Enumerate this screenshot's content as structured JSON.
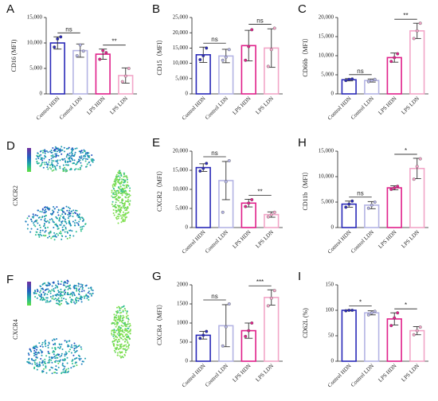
{
  "chart_data": [
    {
      "type": "bar",
      "panel": "A",
      "ylabel": "CD16 (MFI)",
      "categories": [
        "Control HDN",
        "Control LDN",
        "LPS HDN",
        "LPS LDN"
      ],
      "colors": [
        "#2a2ab8",
        "#b4b4e4",
        "#e0208a",
        "#f2a6c8"
      ],
      "values": [
        10000,
        8500,
        7800,
        3600
      ],
      "errors": [
        1200,
        1300,
        1000,
        1500
      ],
      "points": [
        [
          9200,
          10800,
          11200
        ],
        [
          7500,
          9600,
          8400
        ],
        [
          6800,
          8500,
          8100
        ],
        [
          2400,
          3500,
          5000
        ]
      ],
      "ylim": [
        0,
        15000
      ],
      "yticks": [
        0,
        {
          "value": 5000,
          "label": "5,000"
        },
        {
          "value": 10000,
          "label": "10,000"
        },
        {
          "value": 15000,
          "label": "15,000"
        }
      ],
      "significance": [
        {
          "from": 0,
          "to": 1,
          "label": "ns"
        },
        {
          "from": 2,
          "to": 3,
          "label": "**"
        }
      ]
    },
    {
      "type": "bar",
      "panel": "B",
      "ylabel": "CD15（MFI）",
      "categories": [
        "Control HDN",
        "Control LDN",
        "LPS HDN",
        "LPS LDN"
      ],
      "colors": [
        "#2a2ab8",
        "#b4b4e4",
        "#e0208a",
        "#f2a6c8"
      ],
      "values": [
        12800,
        12400,
        15800,
        15000
      ],
      "errors": [
        2500,
        2200,
        5000,
        6300
      ],
      "points": [
        [
          11200,
          12500,
          15000
        ],
        [
          11000,
          12000,
          14500
        ],
        [
          11000,
          15500,
          21000
        ],
        [
          9000,
          14500,
          21500
        ]
      ],
      "ylim": [
        0,
        25000
      ],
      "yticks": [
        0,
        {
          "value": 5000,
          "label": "5,000"
        },
        {
          "value": 10000,
          "label": "10,000"
        },
        {
          "value": 15000,
          "label": "15,000"
        },
        {
          "value": 20000,
          "label": "20,000"
        },
        {
          "value": 25000,
          "label": "25,000"
        }
      ],
      "significance": [
        {
          "from": 0,
          "to": 1,
          "label": "ns"
        },
        {
          "from": 2,
          "to": 3,
          "label": "ns"
        }
      ]
    },
    {
      "type": "bar",
      "panel": "C",
      "ylabel": "CD66b（MFI）",
      "categories": [
        "Control HDN",
        "Control LDN",
        "LPS HDN",
        "LPS LDN"
      ],
      "colors": [
        "#2a2ab8",
        "#b4b4e4",
        "#e0208a",
        "#f2a6c8"
      ],
      "values": [
        3700,
        3500,
        9500,
        16500
      ],
      "errors": [
        300,
        400,
        1200,
        2000
      ],
      "points": [
        [
          3500,
          3800,
          3900
        ],
        [
          3200,
          3500,
          3800
        ],
        [
          8500,
          9500,
          10500
        ],
        [
          14500,
          16500,
          18500
        ]
      ],
      "ylim": [
        0,
        20000
      ],
      "yticks": [
        0,
        {
          "value": 5000,
          "label": "5,000"
        },
        {
          "value": 10000,
          "label": "10,000"
        },
        {
          "value": 15000,
          "label": "15,000"
        },
        {
          "value": 20000,
          "label": "20,000"
        }
      ],
      "significance": [
        {
          "from": 0,
          "to": 1,
          "label": "ns"
        },
        {
          "from": 2,
          "to": 3,
          "label": "**"
        }
      ]
    },
    {
      "type": "bar",
      "panel": "E",
      "ylabel": "CXCR2（MFI）",
      "categories": [
        "Control HDN",
        "Control LDN",
        "LPS HDN",
        "LPS LDN"
      ],
      "colors": [
        "#2a2ab8",
        "#b4b4e4",
        "#e0208a",
        "#f2a6c8"
      ],
      "values": [
        15700,
        12300,
        6400,
        3400
      ],
      "errors": [
        1000,
        5000,
        1000,
        700
      ],
      "points": [
        [
          14800,
          15500,
          16800
        ],
        [
          4000,
          12000,
          17500
        ],
        [
          5500,
          6400,
          7300
        ],
        [
          2800,
          3400,
          4000
        ]
      ],
      "ylim": [
        0,
        20000
      ],
      "yticks": [
        0,
        {
          "value": 5000,
          "label": "5,000"
        },
        {
          "value": 10000,
          "label": "10,000"
        },
        {
          "value": 15000,
          "label": "15,000"
        },
        {
          "value": 20000,
          "label": "20,000"
        }
      ],
      "significance": [
        {
          "from": 0,
          "to": 1,
          "label": "ns"
        },
        {
          "from": 2,
          "to": 3,
          "label": "**"
        }
      ]
    },
    {
      "type": "bar",
      "panel": "H",
      "ylabel": "CD11b（MFI）",
      "categories": [
        "Control HDN",
        "Control LDN",
        "LPS HDN",
        "LPS LDN"
      ],
      "colors": [
        "#2a2ab8",
        "#b4b4e4",
        "#e0208a",
        "#f2a6c8"
      ],
      "values": [
        4600,
        4400,
        7800,
        11600
      ],
      "errors": [
        600,
        700,
        400,
        2000
      ],
      "points": [
        [
          4000,
          4600,
          5200
        ],
        [
          3800,
          4400,
          5000
        ],
        [
          7500,
          7800,
          8100
        ],
        [
          9500,
          12000,
          13500
        ]
      ],
      "ylim": [
        0,
        15000
      ],
      "yticks": [
        0,
        {
          "value": 5000,
          "label": "5,000"
        },
        {
          "value": 10000,
          "label": "10,000"
        },
        {
          "value": 15000,
          "label": "15,000"
        }
      ],
      "significance": [
        {
          "from": 0,
          "to": 1,
          "label": "ns"
        },
        {
          "from": 2,
          "to": 3,
          "label": "*"
        }
      ]
    },
    {
      "type": "bar",
      "panel": "G",
      "ylabel": "CXCR4（MFI）",
      "categories": [
        "Control HDN",
        "Control LDN",
        "LPS HDN",
        "LPS LDN"
      ],
      "colors": [
        "#2a2ab8",
        "#b4b4e4",
        "#e0208a",
        "#f2a6c8"
      ],
      "values": [
        680,
        930,
        800,
        1670
      ],
      "errors": [
        100,
        550,
        200,
        200
      ],
      "points": [
        [
          600,
          680,
          780
        ],
        [
          400,
          900,
          1500
        ],
        [
          650,
          800,
          1000
        ],
        [
          1450,
          1650,
          1850
        ]
      ],
      "ylim": [
        0,
        2000
      ],
      "yticks": [
        0,
        500,
        1000,
        1500,
        2000
      ],
      "significance": [
        {
          "from": 0,
          "to": 1,
          "label": "ns"
        },
        {
          "from": 2,
          "to": 3,
          "label": "***"
        }
      ]
    },
    {
      "type": "bar",
      "panel": "I",
      "ylabel": "CD62L (%)",
      "categories": [
        "Control HDN",
        "Control LDN",
        "LPS HDN",
        "LPS LDN"
      ],
      "colors": [
        "#2a2ab8",
        "#b4b4e4",
        "#e0208a",
        "#f2a6c8"
      ],
      "values": [
        100,
        95,
        83,
        60
      ],
      "errors": [
        1,
        4,
        12,
        8
      ],
      "points": [
        [
          99,
          100,
          100
        ],
        [
          91,
          95,
          98
        ],
        [
          70,
          85,
          95
        ],
        [
          52,
          60,
          67
        ]
      ],
      "ylim": [
        0,
        150
      ],
      "yticks": [
        0,
        50,
        100,
        150
      ],
      "significance": [
        {
          "from": 0,
          "to": 1,
          "label": "*"
        },
        {
          "from": 2,
          "to": 3,
          "label": "*"
        }
      ]
    }
  ],
  "umap": [
    {
      "panel": "D",
      "label": "CXCR2"
    },
    {
      "panel": "F",
      "label": "CXCR4"
    }
  ]
}
